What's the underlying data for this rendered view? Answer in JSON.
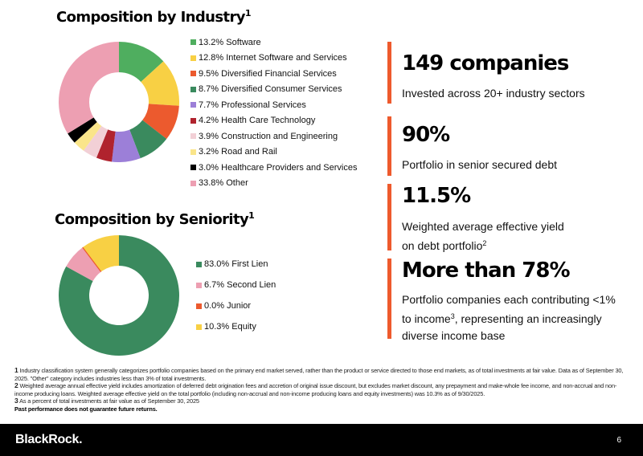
{
  "chart_data": [
    {
      "type": "pie",
      "variant": "donut",
      "title": "Composition by Industry",
      "title_footnote": "1",
      "unit": "%",
      "legend_position": "right",
      "categories": [
        "Software",
        "Internet Software and Services",
        "Diversified Financial Services",
        "Diversified Consumer Services",
        "Professional Services",
        "Health Care Technology",
        "Construction and Engineering",
        "Road and Rail",
        "Healthcare Providers and Services",
        "Other"
      ],
      "values": [
        13.2,
        12.8,
        9.5,
        8.7,
        7.7,
        4.2,
        3.9,
        3.2,
        3.0,
        33.8
      ],
      "labels": [
        "13.2% Software",
        "12.8% Internet Software and Services",
        "9.5% Diversified Financial Services",
        "8.7% Diversified Consumer Services",
        "7.7% Professional Services",
        "4.2% Health Care Technology",
        "3.9% Construction and Engineering",
        "3.2% Road and Rail",
        "3.0% Healthcare Providers and Services",
        "33.8% Other"
      ],
      "colors": [
        "#4fae5f",
        "#f8d044",
        "#ec5a2e",
        "#3a8a5e",
        "#9c7fd8",
        "#b0232e",
        "#f2d0d6",
        "#fae58a",
        "#000000",
        "#ed9fb2"
      ]
    },
    {
      "type": "pie",
      "variant": "donut",
      "title": "Composition by Seniority",
      "title_footnote": "1",
      "unit": "%",
      "legend_position": "right",
      "categories": [
        "First Lien",
        "Second Lien",
        "Junior",
        "Equity"
      ],
      "values": [
        83.0,
        6.7,
        0.0,
        10.3
      ],
      "labels": [
        "83.0% First Lien",
        "6.7% Second Lien",
        "0.0% Junior",
        "10.3% Equity"
      ],
      "colors": [
        "#3a8a5e",
        "#ed9fb2",
        "#ec5a2e",
        "#f8d044"
      ]
    }
  ],
  "stats": [
    {
      "headline": "149 companies",
      "desc_lines": [
        "Invested across 20+ industry sectors"
      ],
      "footnote": ""
    },
    {
      "headline": "90%",
      "desc_lines": [
        "Portfolio in senior secured debt"
      ],
      "footnote": ""
    },
    {
      "headline": "11.5%",
      "desc_lines": [
        "Weighted average effective yield",
        "on debt portfolio"
      ],
      "footnote": "2"
    },
    {
      "headline": "More than 78%",
      "desc_lines": [
        "Portfolio companies each contributing <1%",
        "to income",
        ", representing an increasingly",
        "diverse income base"
      ],
      "footnote": "3"
    }
  ],
  "accent_color": "#ee5a2d",
  "footnotes": [
    {
      "num": "1",
      "text": "Industry classification system generally categorizes portfolio companies based on the primary end market served, rather than the product or service directed to those end markets, as of total investments at fair value.  Data as of September 30, 2025. \"Other\" category includes industries less than 3% of total investments."
    },
    {
      "num": "2",
      "text": "Weighted average annual effective yield includes amortization of deferred debt origination fees and accretion of original issue discount, but excludes market discount, any prepayment and make-whole fee income, and non-accrual and non-income producing loans. Weighted average effective yield on the total portfolio (including non-accrual and non-income producing loans and equity investments) was 10.3% as of 9/30/2025."
    },
    {
      "num": "3",
      "text": "As a percent of total investments at fair value as of September 30, 2025"
    }
  ],
  "disclaimer": "Past performance does not guarantee future returns.",
  "footer": {
    "logo": "BlackRock.",
    "page_number": "6"
  }
}
